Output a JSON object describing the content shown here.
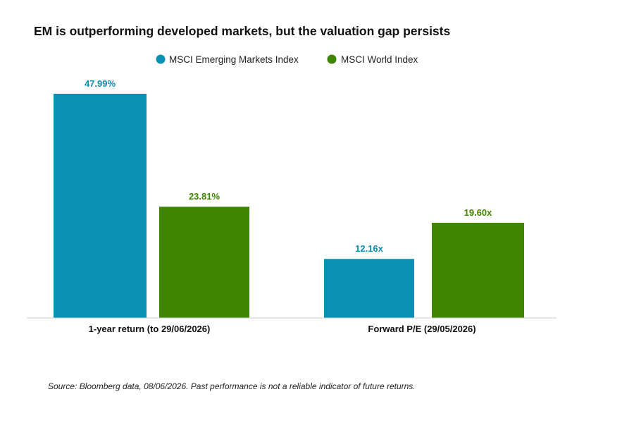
{
  "title": "EM is outperforming developed markets, but the valuation gap persists",
  "source_note": "Source: Bloomberg data, 08/06/2026. Past performance is not a reliable indicator of future returns.",
  "colors": {
    "em": "#0a8fb5",
    "world": "#3f8600",
    "axis": "#cccccc",
    "legend_text": "#222222"
  },
  "chart_data": {
    "type": "bar",
    "title": "EM is outperforming developed markets, but the valuation gap persists",
    "categories": [
      "1-year return (to 29/06/2026)",
      "Forward P/E (29/05/2026)"
    ],
    "series": [
      {
        "name": "MSCI Emerging Markets Index",
        "color": "#0a8fb5",
        "values": [
          47.99,
          12.16
        ],
        "labels": [
          "47.99%",
          "12.16x"
        ]
      },
      {
        "name": "MSCI World Index",
        "color": "#3f8600",
        "values": [
          23.81,
          19.6
        ],
        "labels": [
          "23.81%",
          "19.60x"
        ]
      }
    ],
    "legend_position": "top",
    "grid": false,
    "y_axis_visible": false
  }
}
